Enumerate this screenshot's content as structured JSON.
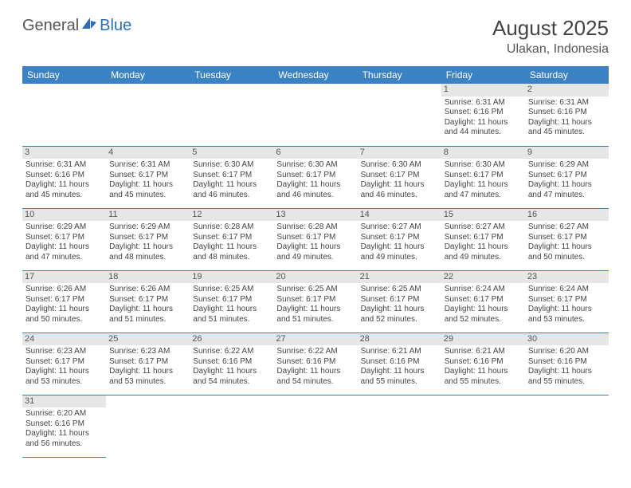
{
  "brand": {
    "part1": "General",
    "part2": "Blue"
  },
  "title": "August 2025",
  "location": "Ulakan, Indonesia",
  "colors": {
    "header_bg": "#3b82c4",
    "header_text": "#ffffff",
    "daynum_bg": "#e6e6e6",
    "border": "#3b82c4",
    "text": "#444444"
  },
  "weekdays": [
    "Sunday",
    "Monday",
    "Tuesday",
    "Wednesday",
    "Thursday",
    "Friday",
    "Saturday"
  ],
  "calendar": {
    "first_weekday_index": 5,
    "num_days": 31
  },
  "days": {
    "1": {
      "sunrise": "6:31 AM",
      "sunset": "6:16 PM",
      "daylight": "11 hours and 44 minutes."
    },
    "2": {
      "sunrise": "6:31 AM",
      "sunset": "6:16 PM",
      "daylight": "11 hours and 45 minutes."
    },
    "3": {
      "sunrise": "6:31 AM",
      "sunset": "6:16 PM",
      "daylight": "11 hours and 45 minutes."
    },
    "4": {
      "sunrise": "6:31 AM",
      "sunset": "6:17 PM",
      "daylight": "11 hours and 45 minutes."
    },
    "5": {
      "sunrise": "6:30 AM",
      "sunset": "6:17 PM",
      "daylight": "11 hours and 46 minutes."
    },
    "6": {
      "sunrise": "6:30 AM",
      "sunset": "6:17 PM",
      "daylight": "11 hours and 46 minutes."
    },
    "7": {
      "sunrise": "6:30 AM",
      "sunset": "6:17 PM",
      "daylight": "11 hours and 46 minutes."
    },
    "8": {
      "sunrise": "6:30 AM",
      "sunset": "6:17 PM",
      "daylight": "11 hours and 47 minutes."
    },
    "9": {
      "sunrise": "6:29 AM",
      "sunset": "6:17 PM",
      "daylight": "11 hours and 47 minutes."
    },
    "10": {
      "sunrise": "6:29 AM",
      "sunset": "6:17 PM",
      "daylight": "11 hours and 47 minutes."
    },
    "11": {
      "sunrise": "6:29 AM",
      "sunset": "6:17 PM",
      "daylight": "11 hours and 48 minutes."
    },
    "12": {
      "sunrise": "6:28 AM",
      "sunset": "6:17 PM",
      "daylight": "11 hours and 48 minutes."
    },
    "13": {
      "sunrise": "6:28 AM",
      "sunset": "6:17 PM",
      "daylight": "11 hours and 49 minutes."
    },
    "14": {
      "sunrise": "6:27 AM",
      "sunset": "6:17 PM",
      "daylight": "11 hours and 49 minutes."
    },
    "15": {
      "sunrise": "6:27 AM",
      "sunset": "6:17 PM",
      "daylight": "11 hours and 49 minutes."
    },
    "16": {
      "sunrise": "6:27 AM",
      "sunset": "6:17 PM",
      "daylight": "11 hours and 50 minutes."
    },
    "17": {
      "sunrise": "6:26 AM",
      "sunset": "6:17 PM",
      "daylight": "11 hours and 50 minutes."
    },
    "18": {
      "sunrise": "6:26 AM",
      "sunset": "6:17 PM",
      "daylight": "11 hours and 51 minutes."
    },
    "19": {
      "sunrise": "6:25 AM",
      "sunset": "6:17 PM",
      "daylight": "11 hours and 51 minutes."
    },
    "20": {
      "sunrise": "6:25 AM",
      "sunset": "6:17 PM",
      "daylight": "11 hours and 51 minutes."
    },
    "21": {
      "sunrise": "6:25 AM",
      "sunset": "6:17 PM",
      "daylight": "11 hours and 52 minutes."
    },
    "22": {
      "sunrise": "6:24 AM",
      "sunset": "6:17 PM",
      "daylight": "11 hours and 52 minutes."
    },
    "23": {
      "sunrise": "6:24 AM",
      "sunset": "6:17 PM",
      "daylight": "11 hours and 53 minutes."
    },
    "24": {
      "sunrise": "6:23 AM",
      "sunset": "6:17 PM",
      "daylight": "11 hours and 53 minutes."
    },
    "25": {
      "sunrise": "6:23 AM",
      "sunset": "6:17 PM",
      "daylight": "11 hours and 53 minutes."
    },
    "26": {
      "sunrise": "6:22 AM",
      "sunset": "6:16 PM",
      "daylight": "11 hours and 54 minutes."
    },
    "27": {
      "sunrise": "6:22 AM",
      "sunset": "6:16 PM",
      "daylight": "11 hours and 54 minutes."
    },
    "28": {
      "sunrise": "6:21 AM",
      "sunset": "6:16 PM",
      "daylight": "11 hours and 55 minutes."
    },
    "29": {
      "sunrise": "6:21 AM",
      "sunset": "6:16 PM",
      "daylight": "11 hours and 55 minutes."
    },
    "30": {
      "sunrise": "6:20 AM",
      "sunset": "6:16 PM",
      "daylight": "11 hours and 55 minutes."
    },
    "31": {
      "sunrise": "6:20 AM",
      "sunset": "6:16 PM",
      "daylight": "11 hours and 56 minutes."
    }
  },
  "labels": {
    "sunrise": "Sunrise:",
    "sunset": "Sunset:",
    "daylight": "Daylight:"
  }
}
